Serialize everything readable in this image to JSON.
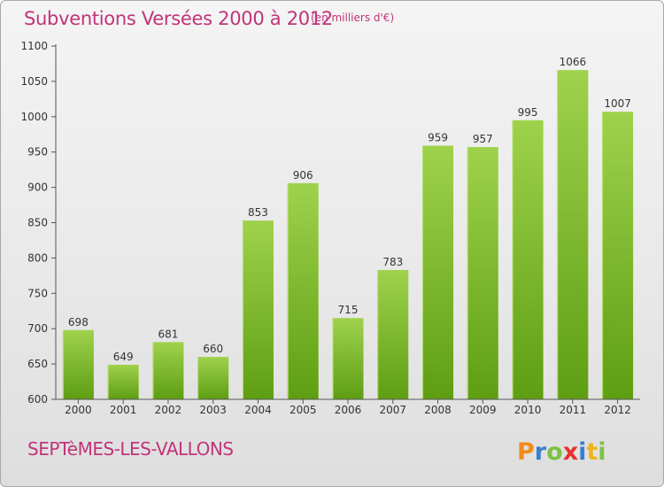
{
  "header": {
    "title": "Subventions Versées 2000 à 2012",
    "subtitle": "(en milliers d'€)"
  },
  "footer": {
    "place_name": "SEPTèMES-LES-VALLONS",
    "logo_text": "Proxiti"
  },
  "colors": {
    "title": "#c0347a",
    "bar_light": "#9fd24c",
    "bar_dark": "#5e9e13",
    "axis": "#555555"
  },
  "chart_data": {
    "type": "bar",
    "title": "Subventions Versées 2000 à 2012",
    "subtitle": "(en milliers d'€)",
    "categories": [
      "2000",
      "2001",
      "2002",
      "2003",
      "2004",
      "2005",
      "2006",
      "2007",
      "2008",
      "2009",
      "2010",
      "2011",
      "2012"
    ],
    "values": [
      698,
      649,
      681,
      660,
      853,
      906,
      715,
      783,
      959,
      957,
      995,
      1066,
      1007
    ],
    "ylim": [
      600,
      1100
    ],
    "yticks": [
      600,
      650,
      700,
      750,
      800,
      850,
      900,
      950,
      1000,
      1050,
      1100
    ],
    "grid": false,
    "data_labels": true,
    "xlabel": "",
    "ylabel": ""
  }
}
